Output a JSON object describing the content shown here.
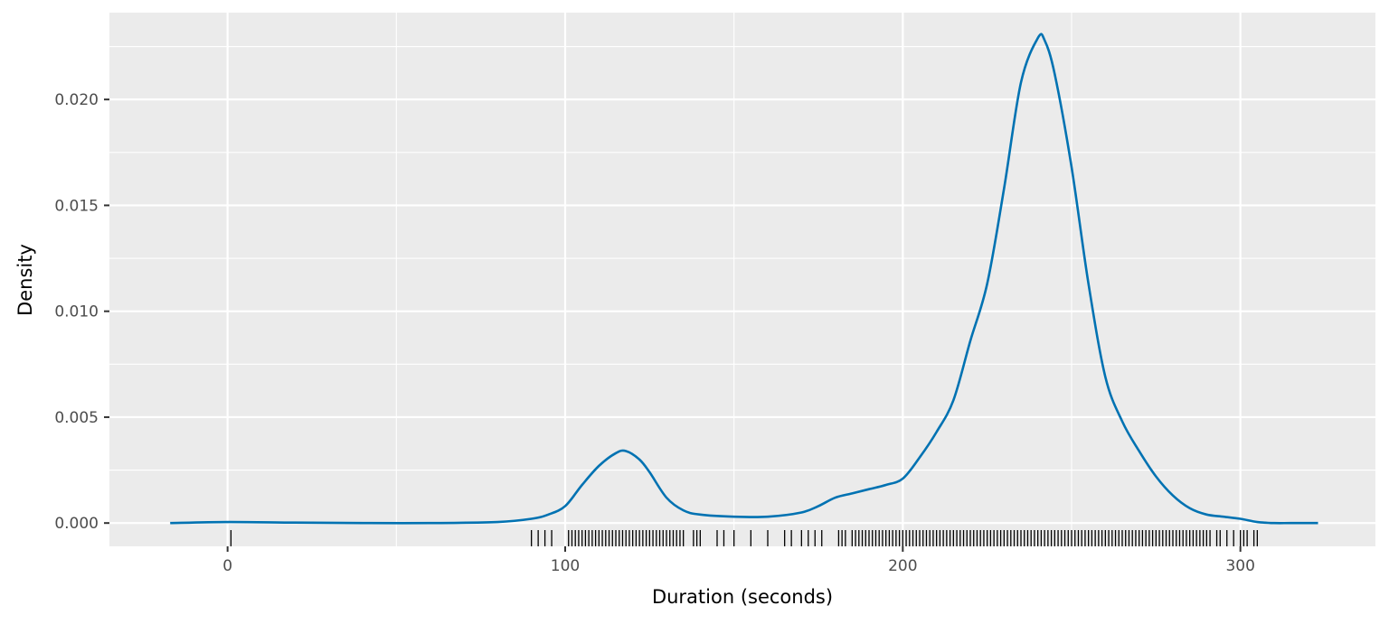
{
  "chart_data": {
    "type": "area",
    "xlabel": "Duration (seconds)",
    "ylabel": "Density",
    "xlim": [
      -35,
      340
    ],
    "ylim": [
      -0.0011,
      0.0241
    ],
    "x_ticks": [
      0,
      100,
      200,
      300
    ],
    "x_tick_labels": [
      "0",
      "100",
      "200",
      "300"
    ],
    "x_minor_ticks": [
      50,
      150,
      250
    ],
    "y_ticks": [
      0,
      0.005,
      0.01,
      0.015,
      0.02
    ],
    "y_tick_labels": [
      "0.000",
      "0.005",
      "0.010",
      "0.015",
      "0.020"
    ],
    "y_minor_ticks": [
      0.0025,
      0.0075,
      0.0125,
      0.0175,
      0.0225
    ],
    "grid": true,
    "colors": {
      "panel_background": "#ebebeb",
      "grid": "#ffffff",
      "density_line": "#0072b2",
      "rug": "#000000"
    },
    "series": [
      {
        "x": [
          -17,
          0,
          20,
          40,
          60,
          80,
          90,
          95,
          100,
          105,
          110,
          115,
          118,
          122,
          125,
          130,
          135,
          140,
          150,
          160,
          170,
          175,
          180,
          185,
          190,
          195,
          200,
          205,
          210,
          215,
          220,
          225,
          230,
          235,
          240,
          242,
          245,
          250,
          255,
          260,
          265,
          270,
          275,
          280,
          285,
          290,
          295,
          300,
          305,
          310,
          315,
          323
        ],
        "y": [
          0,
          5e-05,
          2e-05,
          0,
          0,
          5e-05,
          0.0002,
          0.0004,
          0.0008,
          0.0018,
          0.0027,
          0.0033,
          0.0034,
          0.003,
          0.0024,
          0.0012,
          0.0006,
          0.0004,
          0.0003,
          0.0003,
          0.0005,
          0.0008,
          0.0012,
          0.0014,
          0.0016,
          0.0018,
          0.0021,
          0.0031,
          0.0043,
          0.0058,
          0.0086,
          0.0113,
          0.0158,
          0.0208,
          0.0229,
          0.0228,
          0.0212,
          0.0168,
          0.0113,
          0.0069,
          0.0048,
          0.0034,
          0.0022,
          0.0013,
          0.0007,
          0.0004,
          0.0003,
          0.0002,
          5e-05,
          0,
          0,
          0
        ]
      }
    ],
    "rug": [
      1,
      90,
      92,
      94,
      96,
      101,
      102,
      103,
      104,
      105,
      106,
      107,
      108,
      109,
      110,
      111,
      112,
      113,
      114,
      115,
      116,
      117,
      118,
      119,
      120,
      121,
      122,
      123,
      124,
      125,
      126,
      127,
      128,
      129,
      130,
      131,
      132,
      133,
      134,
      135,
      138,
      139,
      140,
      145,
      147,
      150,
      155,
      160,
      165,
      167,
      170,
      172,
      174,
      176,
      181,
      182,
      183,
      185,
      186,
      187,
      188,
      189,
      190,
      191,
      192,
      193,
      194,
      195,
      196,
      197,
      198,
      199,
      200,
      201,
      202,
      203,
      204,
      205,
      206,
      207,
      208,
      209,
      210,
      211,
      212,
      213,
      214,
      215,
      216,
      217,
      218,
      219,
      220,
      221,
      222,
      223,
      224,
      225,
      226,
      227,
      228,
      229,
      230,
      231,
      232,
      233,
      234,
      235,
      236,
      237,
      238,
      239,
      240,
      241,
      242,
      243,
      244,
      245,
      246,
      247,
      248,
      249,
      250,
      251,
      252,
      253,
      254,
      255,
      256,
      257,
      258,
      259,
      260,
      261,
      262,
      263,
      264,
      265,
      266,
      267,
      268,
      269,
      270,
      271,
      272,
      273,
      274,
      275,
      276,
      277,
      278,
      279,
      280,
      281,
      282,
      283,
      284,
      285,
      286,
      287,
      288,
      289,
      290,
      291,
      293,
      294,
      296,
      298,
      300,
      301,
      302,
      304,
      305
    ]
  }
}
